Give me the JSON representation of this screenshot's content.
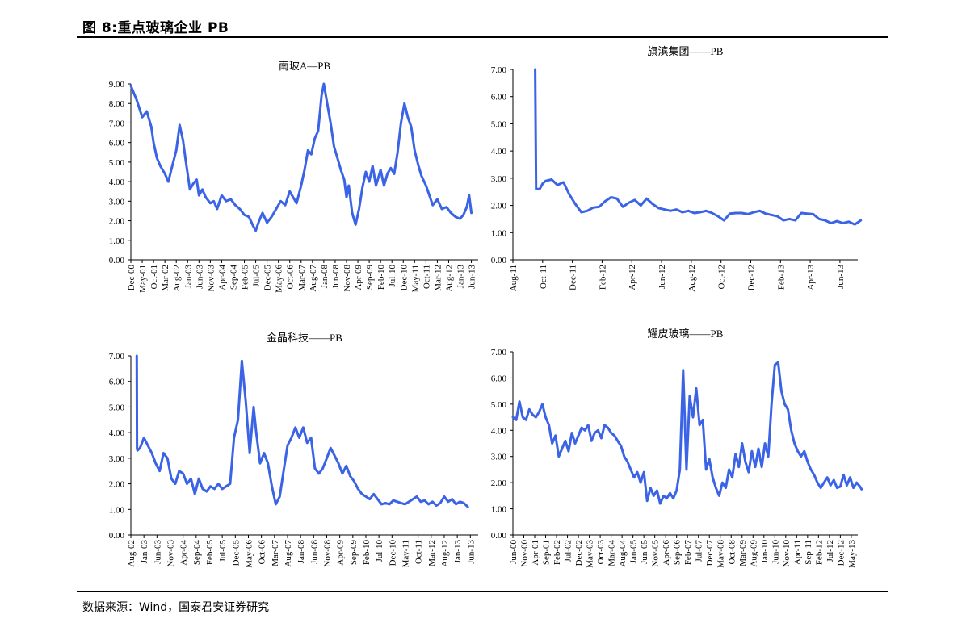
{
  "figure_title": "图  8:重点玻璃企业 PB",
  "source": "数据来源：Wind，国泰君安证券研究",
  "chart_data": [
    {
      "type": "line",
      "title": "南玻A—PB",
      "series_color": "#3b63e6",
      "ylim": [
        0,
        9
      ],
      "yticks": [
        "0.00",
        "1.00",
        "2.00",
        "3.00",
        "4.00",
        "5.00",
        "6.00",
        "7.00",
        "8.00",
        "9.00"
      ],
      "xticks": [
        "Dec-00",
        "May-01",
        "Oct-01",
        "Mar-02",
        "Aug-02",
        "Jan-03",
        "Jun-03",
        "Nov-03",
        "Apr-04",
        "Sep-04",
        "Feb-05",
        "Jul-05",
        "Dec-05",
        "May-06",
        "Oct-06",
        "Mar-07",
        "Aug-07",
        "Jan-08",
        "Jun-08",
        "Nov-08",
        "Apr-09",
        "Sep-09",
        "Feb-10",
        "Jul-10",
        "Dec-10",
        "May-11",
        "Oct-11",
        "Mar-12",
        "Aug-12",
        "Jan-13",
        "Jun-13"
      ],
      "x": [
        0,
        0.5,
        1,
        1.4,
        1.8,
        2,
        2.3,
        2.6,
        3,
        3.3,
        3.6,
        4,
        4.3,
        4.6,
        4.8,
        5,
        5.2,
        5.5,
        5.8,
        6,
        6.3,
        6.6,
        7,
        7.3,
        7.6,
        8,
        8.4,
        8.8,
        9.2,
        9.6,
        10,
        10.4,
        10.8,
        11,
        11.3,
        11.6,
        12,
        12.4,
        12.8,
        13.2,
        13.6,
        14,
        14.3,
        14.6,
        15,
        15.3,
        15.6,
        15.9,
        16.2,
        16.5,
        16.8,
        17,
        17.3,
        17.6,
        17.9,
        18.2,
        18.5,
        18.8,
        19,
        19.2,
        19.5,
        19.8,
        20.1,
        20.4,
        20.7,
        21,
        21.3,
        21.6,
        22,
        22.3,
        22.6,
        22.9,
        23.2,
        23.5,
        23.8,
        24.1,
        24.4,
        24.7,
        25,
        25.3,
        25.6,
        26,
        26.3,
        26.6,
        27,
        27.4,
        27.8,
        28.2,
        28.6,
        29,
        29.3,
        29.6,
        29.8,
        30
      ],
      "values": [
        8.9,
        8.2,
        7.3,
        7.6,
        6.8,
        6.0,
        5.2,
        4.8,
        4.4,
        4.0,
        4.7,
        5.6,
        6.9,
        6.1,
        5.2,
        4.4,
        3.6,
        3.9,
        4.1,
        3.3,
        3.6,
        3.2,
        2.9,
        3.0,
        2.6,
        3.3,
        3.0,
        3.1,
        2.8,
        2.6,
        2.3,
        2.2,
        1.7,
        1.5,
        2.0,
        2.4,
        1.9,
        2.2,
        2.6,
        3.0,
        2.8,
        3.5,
        3.2,
        2.9,
        3.8,
        4.6,
        5.6,
        5.4,
        6.2,
        6.6,
        8.4,
        9.0,
        8.0,
        7.0,
        5.8,
        5.2,
        4.6,
        4.1,
        3.2,
        3.8,
        2.4,
        1.8,
        2.6,
        3.7,
        4.5,
        4.0,
        4.8,
        3.8,
        4.6,
        3.8,
        4.4,
        4.7,
        4.4,
        5.5,
        7.0,
        8.0,
        7.3,
        6.8,
        5.6,
        4.9,
        4.3,
        3.8,
        3.3,
        2.8,
        3.1,
        2.6,
        2.7,
        2.4,
        2.2,
        2.1,
        2.3,
        2.7,
        3.3,
        2.4
      ]
    },
    {
      "type": "line",
      "title": "旗滨集团——PB",
      "series_color": "#3b63e6",
      "ylim": [
        0,
        7
      ],
      "yticks": [
        "0.00",
        "1.00",
        "2.00",
        "3.00",
        "4.00",
        "5.00",
        "6.00",
        "7.00"
      ],
      "xticks": [
        "Aug-11",
        "Oct-11",
        "Dec-11",
        "Feb-12",
        "Apr-12",
        "Jun-12",
        "Aug-12",
        "Oct-12",
        "Dec-12",
        "Feb-13",
        "Apr-13",
        "Jun-13"
      ],
      "x": [
        0.75,
        0.78,
        0.8,
        0.9,
        1.0,
        1.1,
        1.3,
        1.5,
        1.7,
        1.9,
        2.1,
        2.3,
        2.5,
        2.7,
        2.9,
        3.1,
        3.3,
        3.5,
        3.7,
        3.9,
        4.1,
        4.3,
        4.5,
        4.7,
        4.9,
        5.1,
        5.3,
        5.5,
        5.7,
        5.9,
        6.1,
        6.3,
        6.5,
        6.7,
        6.9,
        7.1,
        7.3,
        7.5,
        7.7,
        7.9,
        8.1,
        8.3,
        8.5,
        8.7,
        8.9,
        9.1,
        9.3,
        9.5,
        9.7,
        9.9,
        10.1,
        10.3,
        10.5,
        10.7,
        10.9,
        11.1,
        11.3,
        11.5,
        11.7
      ],
      "values": [
        7.0,
        2.6,
        2.6,
        2.6,
        2.8,
        2.9,
        2.95,
        2.75,
        2.85,
        2.4,
        2.05,
        1.75,
        1.8,
        1.92,
        1.95,
        2.15,
        2.3,
        2.25,
        1.95,
        2.1,
        2.2,
        2.0,
        2.25,
        2.05,
        1.9,
        1.85,
        1.8,
        1.85,
        1.75,
        1.8,
        1.72,
        1.75,
        1.8,
        1.72,
        1.6,
        1.45,
        1.7,
        1.72,
        1.72,
        1.68,
        1.75,
        1.8,
        1.7,
        1.65,
        1.6,
        1.45,
        1.5,
        1.45,
        1.72,
        1.7,
        1.68,
        1.5,
        1.45,
        1.35,
        1.42,
        1.35,
        1.4,
        1.3,
        1.45
      ]
    },
    {
      "type": "line",
      "title": "金晶科技——PB",
      "series_color": "#3b63e6",
      "ylim": [
        0,
        7
      ],
      "yticks": [
        "0.00",
        "1.00",
        "2.00",
        "3.00",
        "4.00",
        "5.00",
        "6.00",
        "7.00"
      ],
      "xticks": [
        "Aug-02",
        "Jan-03",
        "Jun-03",
        "Nov-03",
        "Apr-04",
        "Sep-04",
        "Feb-05",
        "Jul-05",
        "Dec-05",
        "May-06",
        "Oct-06",
        "Mar-07",
        "Aug-07",
        "Jan-08",
        "Jun-08",
        "Nov-08",
        "Apr-09",
        "Sep-09",
        "Feb-10",
        "Jul-10",
        "Dec-10",
        "May-11",
        "Oct-11",
        "Mar-12",
        "Aug-12",
        "Jan-13",
        "Jun-13"
      ],
      "x": [
        0.45,
        0.47,
        0.5,
        0.7,
        1.0,
        1.3,
        1.6,
        1.9,
        2.2,
        2.5,
        2.8,
        3.1,
        3.4,
        3.7,
        4.0,
        4.3,
        4.6,
        4.9,
        5.2,
        5.5,
        5.8,
        6.1,
        6.4,
        6.7,
        7.0,
        7.3,
        7.6,
        7.9,
        8.2,
        8.5,
        8.8,
        9.1,
        9.4,
        9.6,
        9.9,
        10.2,
        10.5,
        10.8,
        11.1,
        11.4,
        11.7,
        12.0,
        12.3,
        12.6,
        12.9,
        13.2,
        13.5,
        13.8,
        14.1,
        14.4,
        14.7,
        15.0,
        15.3,
        15.6,
        15.9,
        16.2,
        16.5,
        16.8,
        17.1,
        17.4,
        17.7,
        18.0,
        18.3,
        18.6,
        18.9,
        19.2,
        19.5,
        19.8,
        20.1,
        20.4,
        20.7,
        21.0,
        21.3,
        21.6,
        21.9,
        22.2,
        22.5,
        22.8,
        23.1,
        23.4,
        23.7,
        24.0,
        24.3,
        24.6,
        24.9,
        25.2,
        25.5,
        25.8
      ],
      "values": [
        7.0,
        3.4,
        3.3,
        3.4,
        3.8,
        3.5,
        3.2,
        2.8,
        2.5,
        3.2,
        3.0,
        2.2,
        2.0,
        2.5,
        2.4,
        2.0,
        2.2,
        1.6,
        2.2,
        1.8,
        1.7,
        1.9,
        1.8,
        2.0,
        1.8,
        1.9,
        2.0,
        3.8,
        4.5,
        6.8,
        5.2,
        3.2,
        5.0,
        4.0,
        2.8,
        3.2,
        2.8,
        1.9,
        1.2,
        1.5,
        2.5,
        3.5,
        3.8,
        4.2,
        3.8,
        4.2,
        3.6,
        3.8,
        2.6,
        2.4,
        2.6,
        3.0,
        3.4,
        3.1,
        2.8,
        2.4,
        2.7,
        2.3,
        2.1,
        1.8,
        1.6,
        1.5,
        1.4,
        1.6,
        1.4,
        1.2,
        1.25,
        1.2,
        1.35,
        1.3,
        1.25,
        1.2,
        1.3,
        1.4,
        1.5,
        1.3,
        1.35,
        1.2,
        1.3,
        1.15,
        1.25,
        1.5,
        1.3,
        1.4,
        1.2,
        1.3,
        1.25,
        1.1
      ]
    },
    {
      "type": "line",
      "title": "耀皮玻璃——PB",
      "series_color": "#3b63e6",
      "ylim": [
        0,
        7
      ],
      "yticks": [
        "0.00",
        "1.00",
        "2.00",
        "3.00",
        "4.00",
        "5.00",
        "6.00",
        "7.00"
      ],
      "xticks": [
        "Jun-00",
        "Nov-00",
        "Apr-01",
        "Sep-01",
        "Feb-02",
        "Jul-02",
        "Dec-02",
        "May-03",
        "Oct-03",
        "Mar-04",
        "Aug-04",
        "Jan-05",
        "Jun-05",
        "Nov-05",
        "Apr-06",
        "Sep-06",
        "Feb-07",
        "Jul-07",
        "Dec-07",
        "May-08",
        "Oct-08",
        "Mar-09",
        "Aug-09",
        "Jan-10",
        "Jun-10",
        "Nov-10",
        "Apr-11",
        "Sep-11",
        "Feb-12",
        "Jul-12",
        "Dec-12",
        "May-13"
      ],
      "x": [
        0,
        0.3,
        0.6,
        0.9,
        1.2,
        1.5,
        1.8,
        2.1,
        2.4,
        2.7,
        3.0,
        3.3,
        3.6,
        3.9,
        4.2,
        4.5,
        4.8,
        5.1,
        5.4,
        5.7,
        6.0,
        6.3,
        6.6,
        6.9,
        7.2,
        7.5,
        7.8,
        8.1,
        8.4,
        8.7,
        9.0,
        9.3,
        9.6,
        9.9,
        10.2,
        10.5,
        10.8,
        11.1,
        11.4,
        11.7,
        12.0,
        12.3,
        12.6,
        12.9,
        13.2,
        13.5,
        13.8,
        14.1,
        14.4,
        14.7,
        15.0,
        15.3,
        15.6,
        15.9,
        16.2,
        16.5,
        16.8,
        17.1,
        17.4,
        17.7,
        18.0,
        18.3,
        18.6,
        18.9,
        19.2,
        19.5,
        19.8,
        20.1,
        20.4,
        20.7,
        21.0,
        21.3,
        21.6,
        21.9,
        22.2,
        22.5,
        22.8,
        23.1,
        23.4,
        23.7,
        24.0,
        24.3,
        24.6,
        24.9,
        25.2,
        25.5,
        25.8,
        26.1,
        26.4,
        26.7,
        27.0,
        27.3,
        27.6,
        27.9,
        28.2,
        28.5,
        28.8,
        29.1,
        29.4,
        29.7,
        30.0,
        30.3,
        30.6,
        30.9,
        31.2,
        31.5,
        31.8,
        31.95
      ],
      "values": [
        4.5,
        4.4,
        5.1,
        4.5,
        4.4,
        4.8,
        4.6,
        4.5,
        4.7,
        5.0,
        4.5,
        4.2,
        3.5,
        3.8,
        3.0,
        3.3,
        3.6,
        3.2,
        3.9,
        3.5,
        3.8,
        4.1,
        4.0,
        4.2,
        3.6,
        3.9,
        4.0,
        3.7,
        4.2,
        4.1,
        3.9,
        3.8,
        3.6,
        3.4,
        3.0,
        2.8,
        2.5,
        2.2,
        2.4,
        2.0,
        2.4,
        1.3,
        1.8,
        1.5,
        1.7,
        1.2,
        1.5,
        1.4,
        1.6,
        1.4,
        1.7,
        2.5,
        6.3,
        2.5,
        5.3,
        4.5,
        5.6,
        4.2,
        4.4,
        2.5,
        2.9,
        2.2,
        1.8,
        1.5,
        2.0,
        1.8,
        2.5,
        2.2,
        3.1,
        2.6,
        3.5,
        2.8,
        2.4,
        3.2,
        2.6,
        3.3,
        2.6,
        3.5,
        3.0,
        5.0,
        6.5,
        6.6,
        5.5,
        5.0,
        4.8,
        4.0,
        3.5,
        3.2,
        3.0,
        3.2,
        2.8,
        2.5,
        2.3,
        2.0,
        1.8,
        2.0,
        2.2,
        1.9,
        2.1,
        1.8,
        1.85,
        2.3,
        1.9,
        2.2,
        1.8,
        2.0,
        1.85,
        1.75
      ]
    }
  ]
}
